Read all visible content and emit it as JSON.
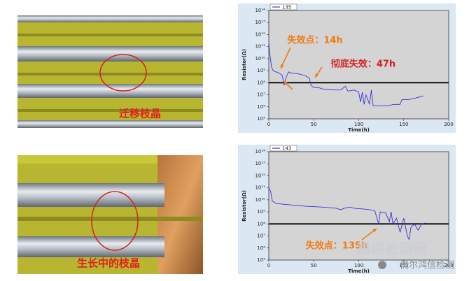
{
  "photos": [
    {
      "caption": "迁移枝晶"
    },
    {
      "caption": "生长中的枝晶"
    }
  ],
  "watermark": [
    "嘉峪检测网",
    "优尔鸿信检测"
  ],
  "chart_data": [
    {
      "type": "line",
      "x_label": "Time(h)",
      "y_label": "Resistor(Ω)",
      "log_scale": true,
      "legend": "upper left",
      "reference_line": 100000000,
      "reference_color": "#000000",
      "annotations": [
        {
          "text": "失效点：14h",
          "color": "#f07a10"
        },
        {
          "text": "彻底失效：47h",
          "color": "#d42020"
        }
      ],
      "x": [
        0,
        1,
        3,
        5,
        8,
        12,
        15,
        17,
        19,
        22,
        26,
        30,
        35,
        40,
        45,
        47,
        50,
        55,
        60,
        70,
        80,
        85,
        88,
        95,
        100,
        102,
        104,
        106,
        108,
        110,
        112,
        114,
        116,
        120,
        130,
        140,
        146,
        148,
        155,
        162,
        172
      ],
      "series": [
        {
          "name": "135",
          "color": "#3535d8",
          "values": [
            200000000000.0,
            30000000000.0,
            2000000000.0,
            1000000000.0,
            800000000.0,
            600000000.0,
            400000000.0,
            60000000.0,
            250000000.0,
            800000000.0,
            600000000.0,
            600000000.0,
            500000000.0,
            400000000.0,
            250000000.0,
            60000000.0,
            40000000.0,
            40000000.0,
            30000000.0,
            25000000.0,
            25000000.0,
            50000000.0,
            20000000.0,
            25000000.0,
            16000000.0,
            2500000.0,
            16000000.0,
            1600000.0,
            10000000.0,
            4000000.0,
            1600000.0,
            25000000.0,
            1200000.0,
            1200000.0,
            1200000.0,
            1600000.0,
            1600000.0,
            4000000.0,
            4000000.0,
            5000000.0,
            8000000.0
          ]
        }
      ],
      "xlim": [
        0,
        200
      ],
      "xticks": [
        0,
        50,
        100,
        150,
        200
      ],
      "ylim": [
        100000,
        100000000000000
      ],
      "yticks": [
        {
          "value": 100000.0,
          "label": "10⁵"
        },
        {
          "value": 1000000.0,
          "label": "10⁶"
        },
        {
          "value": 10000000.0,
          "label": "10⁷"
        },
        {
          "value": 100000000.0,
          "label": "10⁸"
        },
        {
          "value": 1000000000.0,
          "label": "10⁹"
        },
        {
          "value": 10000000000.0,
          "label": "10¹⁰"
        },
        {
          "value": 100000000000.0,
          "label": "10¹¹"
        },
        {
          "value": 1000000000000.0,
          "label": "10¹²"
        },
        {
          "value": 10000000000000.0,
          "label": "10¹³"
        },
        {
          "value": 100000000000000.0,
          "label": "10¹⁴"
        }
      ]
    },
    {
      "type": "line",
      "x_label": "Time(h)",
      "y_label": "Resistor(Ω)",
      "log_scale": true,
      "legend": "upper left",
      "reference_line": 100000000,
      "reference_color": "#000000",
      "annotations": [
        {
          "text": "失效点：135h",
          "color": "#f07a10"
        }
      ],
      "x": [
        0,
        2,
        4,
        8,
        20,
        40,
        60,
        75,
        80,
        84,
        90,
        95,
        110,
        118,
        122,
        124,
        130,
        134,
        136,
        138,
        142,
        146,
        150,
        154,
        156,
        158,
        162,
        166,
        170,
        174
      ],
      "series": [
        {
          "name": "143",
          "color": "#3535d8",
          "values": [
            100000000000.0,
            50000000000.0,
            8000000000.0,
            5000000000.0,
            4000000000.0,
            3000000000.0,
            2500000000.0,
            2000000000.0,
            1500000000.0,
            2000000000.0,
            2500000000.0,
            2000000000.0,
            1600000000.0,
            1200000000.0,
            100000000.0,
            1000000000.0,
            800000000.0,
            150000000.0,
            1000000000.0,
            100000000.0,
            300000000.0,
            20000000.0,
            300000000.0,
            10000000.0,
            5000000.0,
            50000000.0,
            100000000.0,
            30000000.0,
            100000000.0,
            120000000.0
          ]
        }
      ],
      "xlim": [
        0,
        200
      ],
      "xticks": [
        0,
        50,
        100,
        150,
        200
      ],
      "ylim": [
        100000,
        100000000000000
      ],
      "yticks": [
        {
          "value": 100000.0,
          "label": "10⁵"
        },
        {
          "value": 1000000.0,
          "label": "10⁶"
        },
        {
          "value": 10000000.0,
          "label": "10⁷"
        },
        {
          "value": 100000000.0,
          "label": "10⁸"
        },
        {
          "value": 1000000000.0,
          "label": "10⁹"
        },
        {
          "value": 10000000000.0,
          "label": "10¹⁰"
        },
        {
          "value": 100000000000.0,
          "label": "10¹¹"
        },
        {
          "value": 1000000000000.0,
          "label": "10¹²"
        },
        {
          "value": 10000000000000.0,
          "label": "10¹³"
        },
        {
          "value": 100000000000000.0,
          "label": "10¹⁴"
        }
      ]
    }
  ]
}
